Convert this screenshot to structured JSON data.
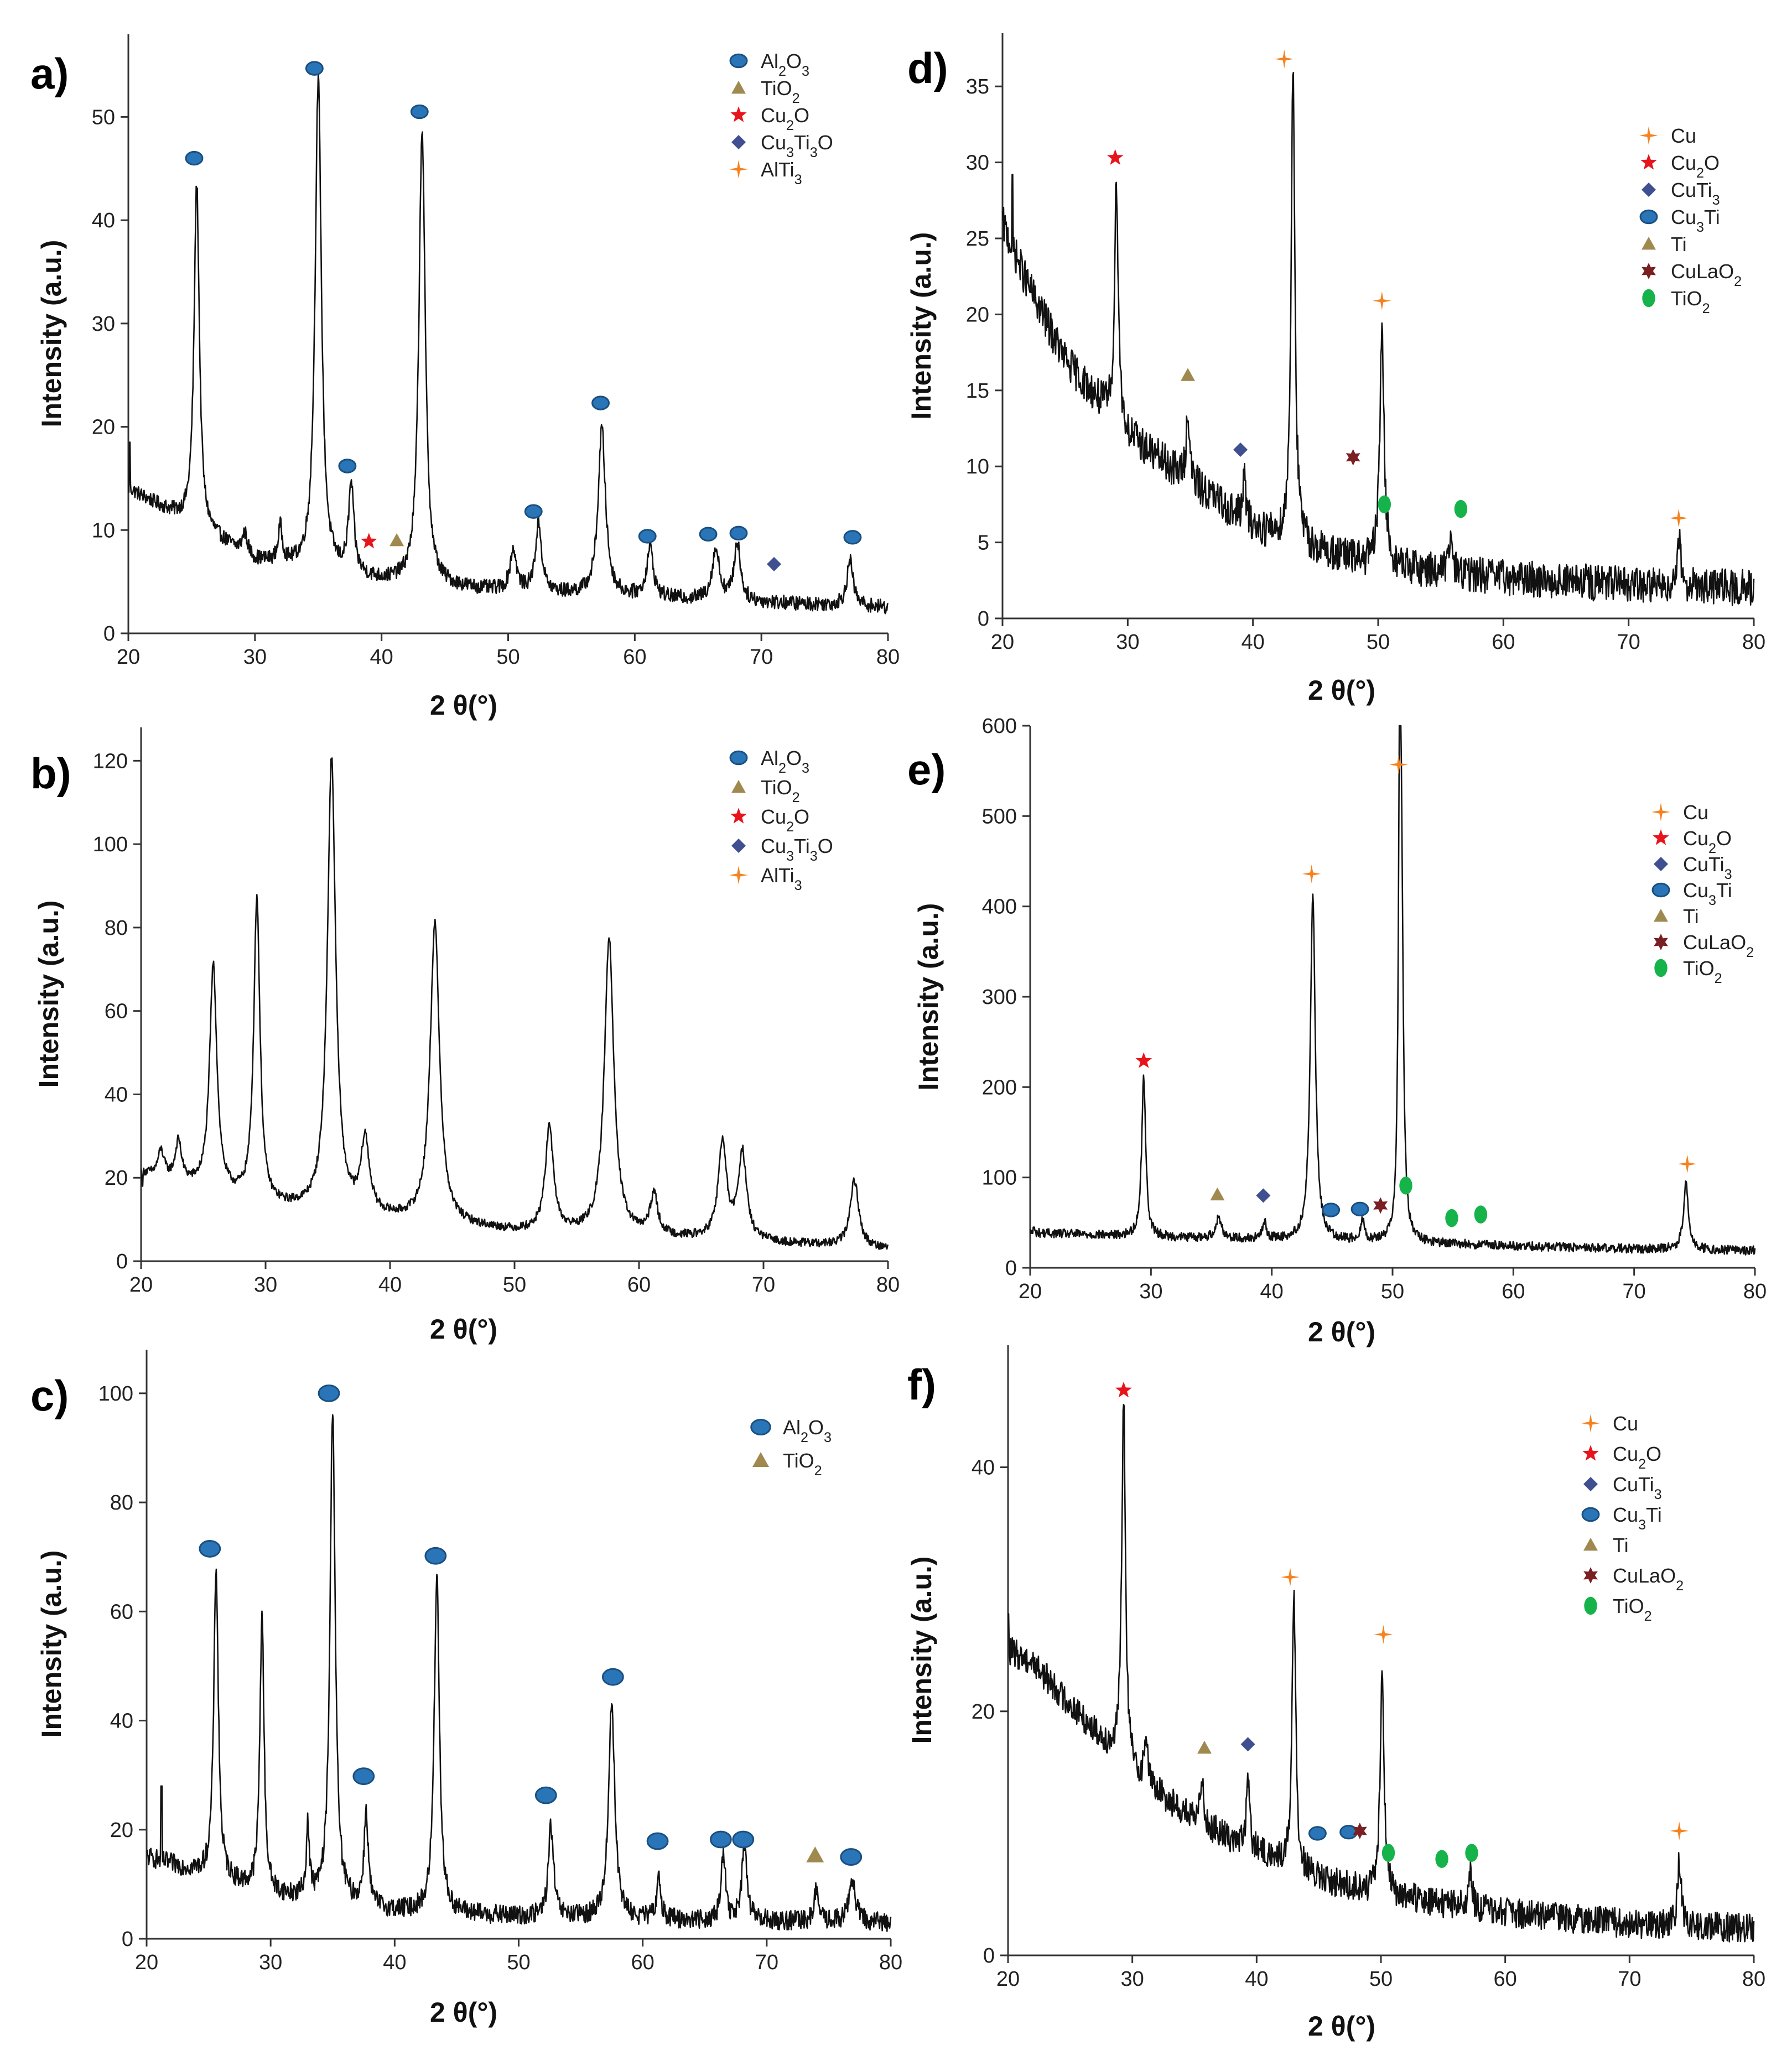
{
  "panels": [
    {
      "label": "a)",
      "xlabel": "2 θ(°)",
      "ylabel": "Intensity (a.u.)",
      "xlim": [
        20,
        80
      ],
      "ylim": [
        0,
        58
      ],
      "xticks": [
        20,
        30,
        40,
        50,
        60,
        70,
        80
      ],
      "yticks": [
        0,
        10,
        20,
        30,
        40,
        50
      ],
      "legend": [
        {
          "marker": "circle",
          "color": "#2a75b8",
          "label": "Al2O3"
        },
        {
          "marker": "triangle",
          "color": "#a0894f",
          "label": "TiO2"
        },
        {
          "marker": "star",
          "color": "#e8141c",
          "label": "Cu2O"
        },
        {
          "marker": "diamond",
          "color": "#3f4f8f",
          "label": "Cu3Ti3O"
        },
        {
          "marker": "cross",
          "color": "#f5821f",
          "label": "AlTi3"
        }
      ],
      "annotations": [
        {
          "marker": "circle",
          "x": 25.2,
          "y": 46
        },
        {
          "marker": "circle",
          "x": 34.7,
          "y": 54.7
        },
        {
          "marker": "circle",
          "x": 37.3,
          "y": 16.2
        },
        {
          "marker": "circle",
          "x": 43.0,
          "y": 50.5
        },
        {
          "marker": "circle",
          "x": 52.0,
          "y": 11.8
        },
        {
          "marker": "circle",
          "x": 57.3,
          "y": 22.3
        },
        {
          "marker": "circle",
          "x": 61.0,
          "y": 9.4
        },
        {
          "marker": "circle",
          "x": 65.8,
          "y": 9.6
        },
        {
          "marker": "circle",
          "x": 68.2,
          "y": 9.7
        },
        {
          "marker": "circle",
          "x": 77.2,
          "y": 9.3
        },
        {
          "marker": "star",
          "x": 39.0,
          "y": 8.9
        },
        {
          "marker": "triangle",
          "x": 41.2,
          "y": 9.0
        },
        {
          "marker": "diamond",
          "x": 71.0,
          "y": 6.7
        }
      ]
    },
    {
      "label": "b)",
      "xlabel": "2 θ(°)",
      "ylabel": "Intensity (a.u.)",
      "xlim": [
        20,
        80
      ],
      "ylim": [
        0,
        128
      ],
      "xticks": [
        20,
        30,
        40,
        50,
        60,
        70,
        80
      ],
      "yticks": [
        0,
        20,
        40,
        60,
        80,
        100,
        120
      ],
      "legend": [
        {
          "marker": "circle",
          "color": "#2a75b8",
          "label": "Al2O3"
        },
        {
          "marker": "triangle",
          "color": "#a0894f",
          "label": "TiO2"
        },
        {
          "marker": "star",
          "color": "#e8141c",
          "label": "Cu2O"
        },
        {
          "marker": "diamond",
          "color": "#3f4f8f",
          "label": "Cu3Ti3O"
        },
        {
          "marker": "cross",
          "color": "#f5821f",
          "label": "AlTi3"
        }
      ],
      "annotations": []
    },
    {
      "label": "c)",
      "xlabel": "2 θ(°)",
      "ylabel": "Intensity (a.u.)",
      "xlim": [
        20,
        80
      ],
      "ylim": [
        0,
        108
      ],
      "xticks": [
        20,
        30,
        40,
        50,
        60,
        70,
        80
      ],
      "yticks": [
        0,
        20,
        40,
        60,
        80,
        100
      ],
      "legend": [
        {
          "marker": "circle",
          "color": "#2a75b8",
          "label": "Al2O3"
        },
        {
          "marker": "triangle",
          "color": "#a0894f",
          "label": "TiO2"
        }
      ],
      "annotations": [
        {
          "marker": "circle",
          "x": 25.1,
          "y": 71.5
        },
        {
          "marker": "circle",
          "x": 34.7,
          "y": 100
        },
        {
          "marker": "circle",
          "x": 37.5,
          "y": 29.8
        },
        {
          "marker": "circle",
          "x": 43.3,
          "y": 70.2
        },
        {
          "marker": "circle",
          "x": 52.2,
          "y": 26.3
        },
        {
          "marker": "circle",
          "x": 57.6,
          "y": 48
        },
        {
          "marker": "circle",
          "x": 61.2,
          "y": 17.9
        },
        {
          "marker": "circle",
          "x": 66.3,
          "y": 18.2
        },
        {
          "marker": "circle",
          "x": 68.1,
          "y": 18.2
        },
        {
          "marker": "circle",
          "x": 76.8,
          "y": 15.0
        },
        {
          "marker": "triangle",
          "x": 73.9,
          "y": 15.3
        }
      ]
    },
    {
      "label": "d)",
      "xlabel": "2 θ(°)",
      "ylabel": "Intensity (a.u.)",
      "xlim": [
        20,
        80
      ],
      "ylim": [
        0,
        38.5
      ],
      "xticks": [
        20,
        30,
        40,
        50,
        60,
        70,
        80
      ],
      "yticks": [
        0,
        5,
        10,
        15,
        20,
        25,
        30,
        35
      ],
      "legend": [
        {
          "marker": "cross",
          "color": "#f5821f",
          "label": "Cu"
        },
        {
          "marker": "star",
          "color": "#e8141c",
          "label": "Cu2O"
        },
        {
          "marker": "diamond",
          "color": "#3f4f8f",
          "label": "CuTi3"
        },
        {
          "marker": "circle",
          "color": "#2a75b8",
          "label": "Cu3Ti"
        },
        {
          "marker": "triangle",
          "color": "#a0894f",
          "label": "Ti"
        },
        {
          "marker": "star6",
          "color": "#7a1f22",
          "label": "CuLaO2"
        },
        {
          "marker": "ellipse",
          "color": "#16b34a",
          "label": "TiO2"
        }
      ],
      "annotations": [
        {
          "marker": "cross",
          "x": 42.5,
          "y": 36.8
        },
        {
          "marker": "cross",
          "x": 50.3,
          "y": 20.9
        },
        {
          "marker": "cross",
          "x": 74.0,
          "y": 6.6
        },
        {
          "marker": "star",
          "x": 29.0,
          "y": 30.3
        },
        {
          "marker": "triangle",
          "x": 34.8,
          "y": 16.0
        },
        {
          "marker": "diamond",
          "x": 39.0,
          "y": 11.1
        },
        {
          "marker": "star6",
          "x": 48.0,
          "y": 10.6
        },
        {
          "marker": "ellipse",
          "x": 50.5,
          "y": 7.5
        },
        {
          "marker": "ellipse",
          "x": 56.6,
          "y": 7.2
        }
      ]
    },
    {
      "label": "e)",
      "xlabel": "2 θ(°)",
      "ylabel": "Intensity (a.u.)",
      "xlim": [
        20,
        80
      ],
      "ylim": [
        0,
        600
      ],
      "xticks": [
        20,
        30,
        40,
        50,
        60,
        70,
        80
      ],
      "yticks": [
        0,
        100,
        200,
        300,
        400,
        500,
        600
      ],
      "legend": [
        {
          "marker": "cross",
          "color": "#f5821f",
          "label": "Cu"
        },
        {
          "marker": "star",
          "color": "#e8141c",
          "label": "Cu2O"
        },
        {
          "marker": "diamond",
          "color": "#3f4f8f",
          "label": "CuTi3"
        },
        {
          "marker": "circle",
          "color": "#2a75b8",
          "label": "Cu3Ti"
        },
        {
          "marker": "triangle",
          "color": "#a0894f",
          "label": "Ti"
        },
        {
          "marker": "star6",
          "color": "#7a1f22",
          "label": "CuLaO2"
        },
        {
          "marker": "ellipse",
          "color": "#16b34a",
          "label": "TiO2"
        }
      ],
      "annotations": [
        {
          "marker": "cross",
          "x": 43.3,
          "y": 436
        },
        {
          "marker": "cross",
          "x": 50.5,
          "y": 557
        },
        {
          "marker": "cross",
          "x": 74.4,
          "y": 115
        },
        {
          "marker": "star",
          "x": 29.4,
          "y": 229
        },
        {
          "marker": "triangle",
          "x": 35.5,
          "y": 81
        },
        {
          "marker": "diamond",
          "x": 39.3,
          "y": 80
        },
        {
          "marker": "circle",
          "x": 44.9,
          "y": 64
        },
        {
          "marker": "circle",
          "x": 47.3,
          "y": 65
        },
        {
          "marker": "star6",
          "x": 49.0,
          "y": 69
        },
        {
          "marker": "ellipse",
          "x": 51.1,
          "y": 91
        },
        {
          "marker": "ellipse",
          "x": 54.9,
          "y": 55
        },
        {
          "marker": "ellipse",
          "x": 57.3,
          "y": 59
        }
      ]
    },
    {
      "label": "f)",
      "xlabel": "2 θ(°)",
      "ylabel": "Intensity (a.u.)",
      "xlim": [
        20,
        80
      ],
      "ylim": [
        0,
        50
      ],
      "xticks": [
        20,
        30,
        40,
        50,
        60,
        70,
        80
      ],
      "yticks": [
        0,
        20,
        40
      ],
      "legend": [
        {
          "marker": "cross",
          "color": "#f5821f",
          "label": "Cu"
        },
        {
          "marker": "star",
          "color": "#e8141c",
          "label": "Cu2O"
        },
        {
          "marker": "diamond",
          "color": "#3f4f8f",
          "label": "CuTi3"
        },
        {
          "marker": "circle",
          "color": "#2a75b8",
          "label": "Cu3Ti"
        },
        {
          "marker": "triangle",
          "color": "#a0894f",
          "label": "Ti"
        },
        {
          "marker": "star6",
          "color": "#7a1f22",
          "label": "CuLaO2"
        },
        {
          "marker": "ellipse",
          "color": "#16b34a",
          "label": "TiO2"
        }
      ],
      "annotations": [
        {
          "marker": "cross",
          "x": 42.7,
          "y": 31.0
        },
        {
          "marker": "cross",
          "x": 50.2,
          "y": 26.3
        },
        {
          "marker": "cross",
          "x": 74.0,
          "y": 10.2
        },
        {
          "marker": "star",
          "x": 29.3,
          "y": 46.3
        },
        {
          "marker": "triangle",
          "x": 35.8,
          "y": 17.0
        },
        {
          "marker": "diamond",
          "x": 39.3,
          "y": 17.3
        },
        {
          "marker": "circle",
          "x": 44.9,
          "y": 10.0
        },
        {
          "marker": "circle",
          "x": 47.4,
          "y": 10.1
        },
        {
          "marker": "star6",
          "x": 48.3,
          "y": 10.2
        },
        {
          "marker": "ellipse",
          "x": 50.6,
          "y": 8.4
        },
        {
          "marker": "ellipse",
          "x": 54.9,
          "y": 7.9
        },
        {
          "marker": "ellipse",
          "x": 57.3,
          "y": 8.4
        }
      ]
    }
  ],
  "chart_data": [
    {
      "type": "line",
      "panel": "a)",
      "xlabel": "2 θ(°)",
      "ylabel": "Intensity (a.u.)",
      "xlim": [
        20,
        80
      ],
      "ylim": [
        0,
        58
      ],
      "baseline": [
        [
          20,
          14
        ],
        [
          30,
          7
        ],
        [
          40,
          5
        ],
        [
          50,
          4
        ],
        [
          60,
          3.5
        ],
        [
          80,
          2.5
        ]
      ],
      "start_spike": [
        20.1,
        18.5
      ],
      "peaks": [
        [
          25.4,
          43.5,
          0.25
        ],
        [
          29.2,
          9.5,
          0.25
        ],
        [
          32.0,
          10,
          0.2
        ],
        [
          35.0,
          53.5,
          0.3
        ],
        [
          37.6,
          14,
          0.25
        ],
        [
          43.2,
          48.8,
          0.3
        ],
        [
          50.4,
          8,
          0.3
        ],
        [
          52.4,
          10.5,
          0.3
        ],
        [
          57.4,
          19.8,
          0.35
        ],
        [
          61.2,
          8.3,
          0.3
        ],
        [
          66.4,
          8,
          0.35
        ],
        [
          68.1,
          8.7,
          0.3
        ],
        [
          77.0,
          7,
          0.3
        ]
      ],
      "noise": 0.7
    },
    {
      "type": "line",
      "panel": "b)",
      "xlabel": "2 θ(°)",
      "ylabel": "Intensity (a.u.)",
      "xlim": [
        20,
        80
      ],
      "ylim": [
        0,
        128
      ],
      "baseline": [
        [
          20,
          21
        ],
        [
          30,
          13
        ],
        [
          40,
          10
        ],
        [
          50,
          7
        ],
        [
          60,
          6
        ],
        [
          80,
          3
        ]
      ],
      "start_spike": [
        20.1,
        18
      ],
      "peaks": [
        [
          21.6,
          26,
          0.3
        ],
        [
          23.0,
          28,
          0.3
        ],
        [
          25.8,
          70.5,
          0.35
        ],
        [
          29.3,
          86.5,
          0.3
        ],
        [
          35.3,
          120,
          0.4
        ],
        [
          38.0,
          28,
          0.4
        ],
        [
          43.6,
          80.5,
          0.45
        ],
        [
          52.8,
          31.5,
          0.4
        ],
        [
          57.6,
          77.5,
          0.45
        ],
        [
          61.2,
          15.5,
          0.35
        ],
        [
          66.7,
          28,
          0.4
        ],
        [
          68.3,
          25.5,
          0.4
        ],
        [
          77.3,
          19.5,
          0.4
        ]
      ],
      "noise": 1.0
    },
    {
      "type": "line",
      "panel": "c)",
      "xlabel": "2 θ(°)",
      "ylabel": "Intensity (a.u.)",
      "xlim": [
        20,
        80
      ],
      "ylim": [
        0,
        108
      ],
      "baseline": [
        [
          20,
          15
        ],
        [
          30,
          8
        ],
        [
          40,
          5
        ],
        [
          50,
          4
        ],
        [
          60,
          3.5
        ],
        [
          80,
          3
        ]
      ],
      "start_spike": [
        21.2,
        28
      ],
      "peaks": [
        [
          25.6,
          68,
          0.22
        ],
        [
          29.3,
          59.5,
          0.2
        ],
        [
          33.0,
          20,
          0.15
        ],
        [
          35.0,
          97.5,
          0.25
        ],
        [
          37.7,
          23,
          0.2
        ],
        [
          43.4,
          67,
          0.25
        ],
        [
          52.6,
          20.5,
          0.25
        ],
        [
          57.5,
          43.5,
          0.3
        ],
        [
          61.3,
          11,
          0.2
        ],
        [
          66.5,
          16,
          0.2
        ],
        [
          68.2,
          16.5,
          0.25
        ],
        [
          74.0,
          9,
          0.2
        ],
        [
          76.9,
          11,
          0.3
        ]
      ],
      "noise": 1.8
    },
    {
      "type": "line",
      "panel": "d)",
      "xlabel": "2 θ(°)",
      "ylabel": "Intensity (a.u.)",
      "xlim": [
        20,
        80
      ],
      "ylim": [
        0,
        38.5
      ],
      "baseline": [
        [
          20,
          26
        ],
        [
          22,
          22
        ],
        [
          25,
          17
        ],
        [
          30,
          12
        ],
        [
          35,
          9
        ],
        [
          40,
          6
        ],
        [
          45,
          4.5
        ],
        [
          50,
          3.5
        ],
        [
          60,
          2.7
        ],
        [
          70,
          2.2
        ],
        [
          80,
          2.0
        ]
      ],
      "start_spike": [
        20.8,
        29.2
      ],
      "peaks": [
        [
          29.1,
          28.8,
          0.18
        ],
        [
          34.8,
          13.8,
          0.15
        ],
        [
          39.3,
          9.2,
          0.15
        ],
        [
          43.2,
          36.5,
          0.18
        ],
        [
          50.3,
          19.2,
          0.2
        ],
        [
          55.8,
          5.5,
          0.15
        ],
        [
          74.0,
          5.2,
          0.2
        ]
      ],
      "noise": 1.2
    },
    {
      "type": "line",
      "panel": "e)",
      "xlabel": "2 θ(°)",
      "ylabel": "Intensity (a.u.)",
      "xlim": [
        20,
        80
      ],
      "ylim": [
        0,
        600
      ],
      "baseline": [
        [
          20,
          39
        ],
        [
          30,
          34
        ],
        [
          40,
          31
        ],
        [
          50,
          28
        ],
        [
          60,
          24
        ],
        [
          70,
          21
        ],
        [
          80,
          19
        ]
      ],
      "start_spike": [
        20.3,
        45
      ],
      "peaks": [
        [
          29.4,
          212,
          0.2
        ],
        [
          35.6,
          55,
          0.3
        ],
        [
          39.4,
          49,
          0.2
        ],
        [
          43.4,
          410,
          0.25
        ],
        [
          47.5,
          51,
          0.2
        ],
        [
          50.6,
          540,
          0.12
        ],
        [
          50.75,
          330,
          0.18
        ],
        [
          74.3,
          93,
          0.25
        ]
      ],
      "noise": 5
    },
    {
      "type": "line",
      "panel": "f)",
      "xlabel": "2 θ(°)",
      "ylabel": "Intensity (a.u.)",
      "xlim": [
        20,
        80
      ],
      "ylim": [
        0,
        50
      ],
      "baseline": [
        [
          20,
          25
        ],
        [
          22,
          24
        ],
        [
          25,
          20.5
        ],
        [
          30,
          15
        ],
        [
          35,
          11
        ],
        [
          40,
          8.5
        ],
        [
          45,
          6.2
        ],
        [
          50,
          5
        ],
        [
          60,
          3.5
        ],
        [
          70,
          2.6
        ],
        [
          80,
          2.2
        ]
      ],
      "start_spike": [
        20.0,
        28
      ],
      "peaks": [
        [
          29.3,
          45.5,
          0.18
        ],
        [
          31.1,
          18,
          0.15
        ],
        [
          35.6,
          15,
          0.15
        ],
        [
          39.3,
          14.5,
          0.15
        ],
        [
          43.0,
          29,
          0.18
        ],
        [
          50.1,
          24,
          0.18
        ],
        [
          57.2,
          7,
          0.15
        ],
        [
          74.0,
          7.5,
          0.18
        ]
      ],
      "noise": 1.2
    }
  ]
}
